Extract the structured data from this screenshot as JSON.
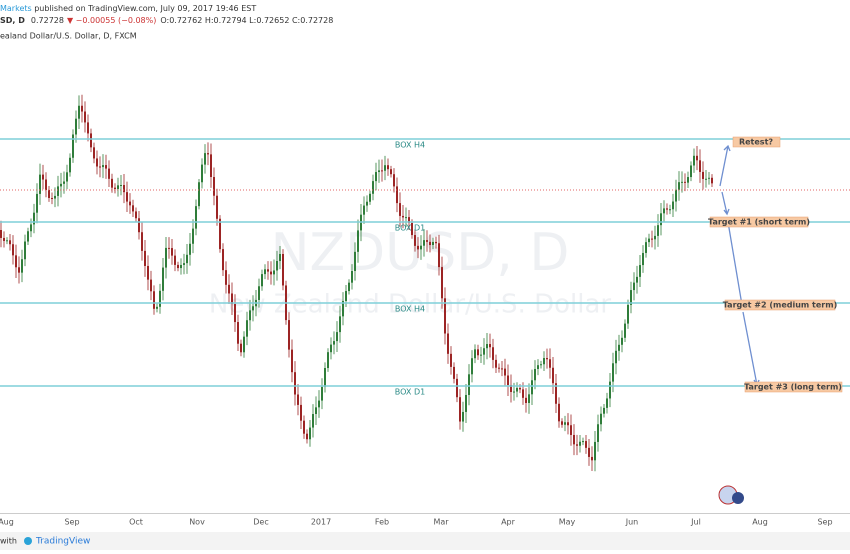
{
  "header": {
    "publisher": "Markets",
    "published": " published on TradingView.com, July 09, 2017 19:46 EST",
    "symbol": "SD, D",
    "price": "0.72728",
    "change": "▼ −0.00055 (−0.08%)",
    "ohlc": "O:0.72762 H:0.72794 L:0.72652 C:0.72728",
    "instrument": "ealand Dollar/U.S. Dollar, D, FXCM"
  },
  "watermark": {
    "symbol": "NZDUSD, D",
    "name": "New Zealand Dollar/U.S. Dollar"
  },
  "levels": [
    "BOX H4",
    "BOX D1",
    "BOX H4",
    "BOX D1"
  ],
  "annotations": [
    "Retest?",
    "Target #1 (short term)",
    "Target #2 (medium term)",
    "Target #3 (long term)"
  ],
  "x_axis": [
    "Aug",
    "Sep",
    "Oct",
    "Nov",
    "Dec",
    "2017",
    "Feb",
    "Mar",
    "Apr",
    "May",
    "Jun",
    "Jul",
    "Aug",
    "Sep"
  ],
  "footer": {
    "prefix": "with",
    "brand": "TradingView"
  }
}
